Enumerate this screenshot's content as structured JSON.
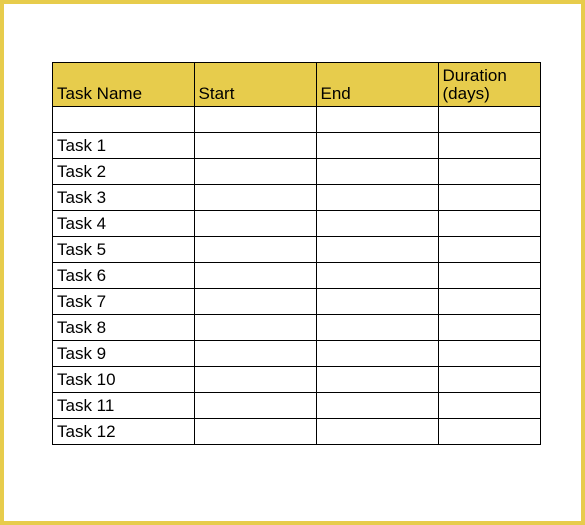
{
  "table": {
    "type": "table",
    "columns": [
      {
        "label": "Task Name",
        "width_pct": 29
      },
      {
        "label": "Start",
        "width_pct": 25
      },
      {
        "label": "End",
        "width_pct": 25
      },
      {
        "label": "Duration (days)",
        "width_pct": 21
      }
    ],
    "rows": [
      {
        "task": "",
        "start": "",
        "end": "",
        "duration": ""
      },
      {
        "task": "Task 1",
        "start": "",
        "end": "",
        "duration": ""
      },
      {
        "task": "Task 2",
        "start": "",
        "end": "",
        "duration": ""
      },
      {
        "task": "Task 3",
        "start": "",
        "end": "",
        "duration": ""
      },
      {
        "task": "Task 4",
        "start": "",
        "end": "",
        "duration": ""
      },
      {
        "task": "Task 5",
        "start": "",
        "end": "",
        "duration": ""
      },
      {
        "task": "Task 6",
        "start": "",
        "end": "",
        "duration": ""
      },
      {
        "task": "Task 7",
        "start": "",
        "end": "",
        "duration": ""
      },
      {
        "task": "Task 8",
        "start": "",
        "end": "",
        "duration": ""
      },
      {
        "task": "Task 9",
        "start": "",
        "end": "",
        "duration": ""
      },
      {
        "task": "Task 10",
        "start": "",
        "end": "",
        "duration": ""
      },
      {
        "task": "Task 11",
        "start": "",
        "end": "",
        "duration": ""
      },
      {
        "task": "Task 12",
        "start": "",
        "end": "",
        "duration": ""
      }
    ],
    "header_bg_color": "#e7cc4c",
    "border_color": "#000000",
    "frame_border_color": "#e7cc4c",
    "background_color": "#ffffff",
    "font_size_header": 17,
    "font_size_cell": 17
  }
}
